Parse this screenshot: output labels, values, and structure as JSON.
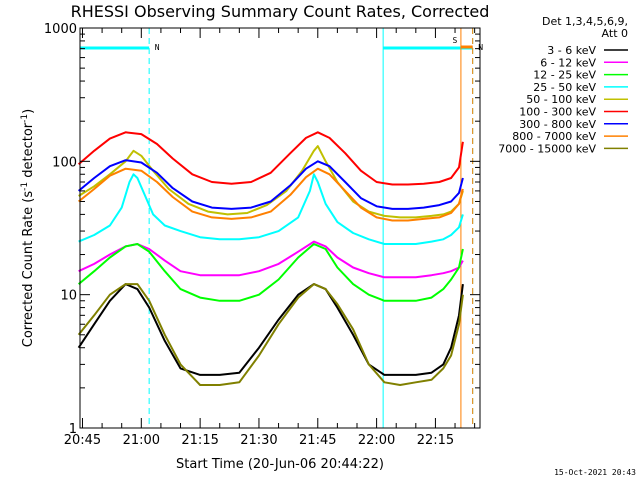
{
  "chart_data": {
    "type": "line",
    "title": "RHESSI Observing Summary Count Rates, Corrected",
    "xlabel": "Start Time (20-Jun-06 20:44:22)",
    "ylabel_main": "Corrected Count Rate (s",
    "ylabel_sup1": "-1",
    "ylabel_mid": " detector",
    "ylabel_sup2": "-1",
    "ylabel_end": ")",
    "y_scale": "log",
    "ylim": [
      1,
      1000
    ],
    "xlim_minutes": [
      0,
      102
    ],
    "x_ticks": [
      "20:45",
      "21:00",
      "21:15",
      "21:30",
      "21:45",
      "22:00",
      "22:15"
    ],
    "y_ticks": [
      "1",
      "10",
      "100",
      "1000"
    ],
    "legend_header_1": "Det 1,3,4,5,6,9,",
    "legend_header_2": "Att 0",
    "timestamp": "15-Oct-2021 20:43",
    "flags": [
      {
        "label": "N",
        "color": "#00ffff",
        "start": "20:44:22",
        "end": "21:02:00"
      },
      {
        "label": "N",
        "color": "#00ffff",
        "start": "22:01:40",
        "end": "22:24:30"
      },
      {
        "label": "S",
        "color": "#ff8000",
        "start": "22:21:30",
        "end": "22:24:30"
      }
    ],
    "series": [
      {
        "name": "3 - 6 keV",
        "color": "#000000",
        "x": [
          "20:44",
          "20:48",
          "20:52",
          "20:56",
          "20:59",
          "21:02",
          "21:06",
          "21:10",
          "21:15",
          "21:20",
          "21:25",
          "21:30",
          "21:35",
          "21:40",
          "21:44",
          "21:47",
          "21:50",
          "21:54",
          "21:58",
          "22:02",
          "22:06",
          "22:10",
          "22:14",
          "22:17",
          "22:19",
          "22:21",
          "22:22"
        ],
        "y": [
          4,
          6,
          9,
          12,
          11,
          8,
          4.5,
          2.8,
          2.5,
          2.5,
          2.6,
          4,
          6.5,
          10,
          12,
          11,
          8,
          5,
          3,
          2.5,
          2.5,
          2.5,
          2.6,
          3,
          4,
          7,
          12
        ]
      },
      {
        "name": "6 - 12 keV",
        "color": "#ff00ff",
        "x": [
          "20:44",
          "20:48",
          "20:52",
          "20:56",
          "20:59",
          "21:02",
          "21:06",
          "21:10",
          "21:15",
          "21:20",
          "21:25",
          "21:30",
          "21:35",
          "21:40",
          "21:44",
          "21:47",
          "21:50",
          "21:54",
          "21:58",
          "22:02",
          "22:06",
          "22:10",
          "22:14",
          "22:17",
          "22:19",
          "22:21",
          "22:22"
        ],
        "y": [
          15,
          17,
          20,
          23,
          24,
          22,
          18,
          15,
          14,
          14,
          14,
          15,
          17,
          21,
          25,
          23,
          19,
          16,
          14.5,
          13.5,
          13.5,
          13.5,
          14,
          14.5,
          15,
          16,
          18
        ]
      },
      {
        "name": "12 - 25 keV",
        "color": "#00ff00",
        "x": [
          "20:44",
          "20:48",
          "20:52",
          "20:56",
          "20:59",
          "21:02",
          "21:06",
          "21:10",
          "21:15",
          "21:20",
          "21:25",
          "21:30",
          "21:35",
          "21:40",
          "21:44",
          "21:47",
          "21:50",
          "21:54",
          "21:58",
          "22:02",
          "22:06",
          "22:10",
          "22:14",
          "22:17",
          "22:19",
          "22:21",
          "22:22"
        ],
        "y": [
          12,
          15,
          19,
          23,
          24,
          21,
          15,
          11,
          9.5,
          9,
          9,
          10,
          13,
          19,
          24,
          22,
          16,
          12,
          10,
          9,
          9,
          9,
          9.5,
          11,
          13,
          16,
          22
        ]
      },
      {
        "name": "25 - 50 keV",
        "color": "#00ffff",
        "x": [
          "20:44",
          "20:48",
          "20:52",
          "20:55",
          "20:57",
          "20:58",
          "20:59",
          "21:01",
          "21:03",
          "21:06",
          "21:10",
          "21:15",
          "21:20",
          "21:25",
          "21:30",
          "21:35",
          "21:40",
          "21:43",
          "21:44",
          "21:45",
          "21:47",
          "21:50",
          "21:54",
          "21:58",
          "22:02",
          "22:06",
          "22:10",
          "22:14",
          "22:17",
          "22:19",
          "22:21",
          "22:22"
        ],
        "y": [
          25,
          28,
          33,
          45,
          70,
          80,
          75,
          55,
          40,
          33,
          30,
          27,
          26,
          26,
          27,
          30,
          38,
          60,
          80,
          70,
          48,
          35,
          29,
          26,
          24,
          24,
          24,
          25,
          26,
          28,
          32,
          40
        ]
      },
      {
        "name": "50 - 100 keV",
        "color": "#c0c000",
        "x": [
          "20:44",
          "20:48",
          "20:52",
          "20:56",
          "20:58",
          "21:00",
          "21:03",
          "21:07",
          "21:12",
          "21:17",
          "21:22",
          "21:27",
          "21:32",
          "21:37",
          "21:41",
          "21:44",
          "21:45",
          "21:47",
          "21:50",
          "21:54",
          "21:58",
          "22:02",
          "22:06",
          "22:10",
          "22:14",
          "22:17",
          "22:19",
          "22:21",
          "22:22"
        ],
        "y": [
          55,
          65,
          80,
          100,
          120,
          110,
          85,
          62,
          48,
          42,
          40,
          41,
          47,
          60,
          85,
          120,
          130,
          100,
          70,
          50,
          42,
          39,
          38,
          38,
          39,
          40,
          42,
          48,
          60
        ]
      },
      {
        "name": "100 - 300 keV",
        "color": "#ff0000",
        "x": [
          "20:44",
          "20:48",
          "20:52",
          "20:56",
          "21:00",
          "21:04",
          "21:08",
          "21:13",
          "21:18",
          "21:23",
          "21:28",
          "21:33",
          "21:38",
          "21:42",
          "21:45",
          "21:48",
          "21:52",
          "21:56",
          "22:00",
          "22:04",
          "22:08",
          "22:12",
          "22:16",
          "22:19",
          "22:21",
          "22:22"
        ],
        "y": [
          95,
          120,
          148,
          165,
          160,
          135,
          105,
          80,
          70,
          68,
          70,
          82,
          115,
          150,
          165,
          150,
          115,
          85,
          70,
          67,
          67,
          68,
          70,
          75,
          90,
          140
        ]
      },
      {
        "name": "300 - 800 keV",
        "color": "#0000ff",
        "x": [
          "20:44",
          "20:48",
          "20:52",
          "20:56",
          "21:00",
          "21:04",
          "21:08",
          "21:13",
          "21:18",
          "21:23",
          "21:28",
          "21:33",
          "21:38",
          "21:42",
          "21:45",
          "21:48",
          "21:52",
          "21:56",
          "22:00",
          "22:04",
          "22:08",
          "22:12",
          "22:16",
          "22:19",
          "22:21",
          "22:22"
        ],
        "y": [
          60,
          75,
          92,
          102,
          98,
          82,
          63,
          50,
          45,
          44,
          45,
          50,
          66,
          88,
          100,
          92,
          70,
          53,
          46,
          44,
          44,
          45,
          47,
          50,
          58,
          75
        ]
      },
      {
        "name": "800 - 7000 keV",
        "color": "#ff8000",
        "x": [
          "20:44",
          "20:48",
          "20:52",
          "20:56",
          "21:00",
          "21:04",
          "21:08",
          "21:13",
          "21:18",
          "21:23",
          "21:28",
          "21:33",
          "21:38",
          "21:42",
          "21:45",
          "21:48",
          "21:52",
          "21:56",
          "22:00",
          "22:04",
          "22:08",
          "22:12",
          "22:16",
          "22:19",
          "22:21",
          "22:22"
        ],
        "y": [
          50,
          62,
          78,
          88,
          85,
          70,
          54,
          42,
          38,
          37,
          38,
          42,
          56,
          76,
          88,
          80,
          60,
          45,
          38,
          36,
          36,
          37,
          38,
          41,
          48,
          62
        ]
      },
      {
        "name": "7000 - 15000 keV",
        "color": "#808000",
        "x": [
          "20:44",
          "20:48",
          "20:52",
          "20:56",
          "20:59",
          "21:02",
          "21:06",
          "21:10",
          "21:15",
          "21:20",
          "21:25",
          "21:30",
          "21:35",
          "21:40",
          "21:44",
          "21:47",
          "21:50",
          "21:54",
          "21:58",
          "22:02",
          "22:06",
          "22:10",
          "22:14",
          "22:17",
          "22:19",
          "22:21",
          "22:22"
        ],
        "y": [
          5,
          7,
          10,
          12,
          12,
          9,
          5,
          3,
          2.1,
          2.1,
          2.2,
          3.5,
          6,
          9.5,
          12,
          11,
          8.5,
          5.5,
          3,
          2.2,
          2.1,
          2.2,
          2.3,
          2.8,
          3.5,
          6,
          10
        ]
      }
    ]
  }
}
